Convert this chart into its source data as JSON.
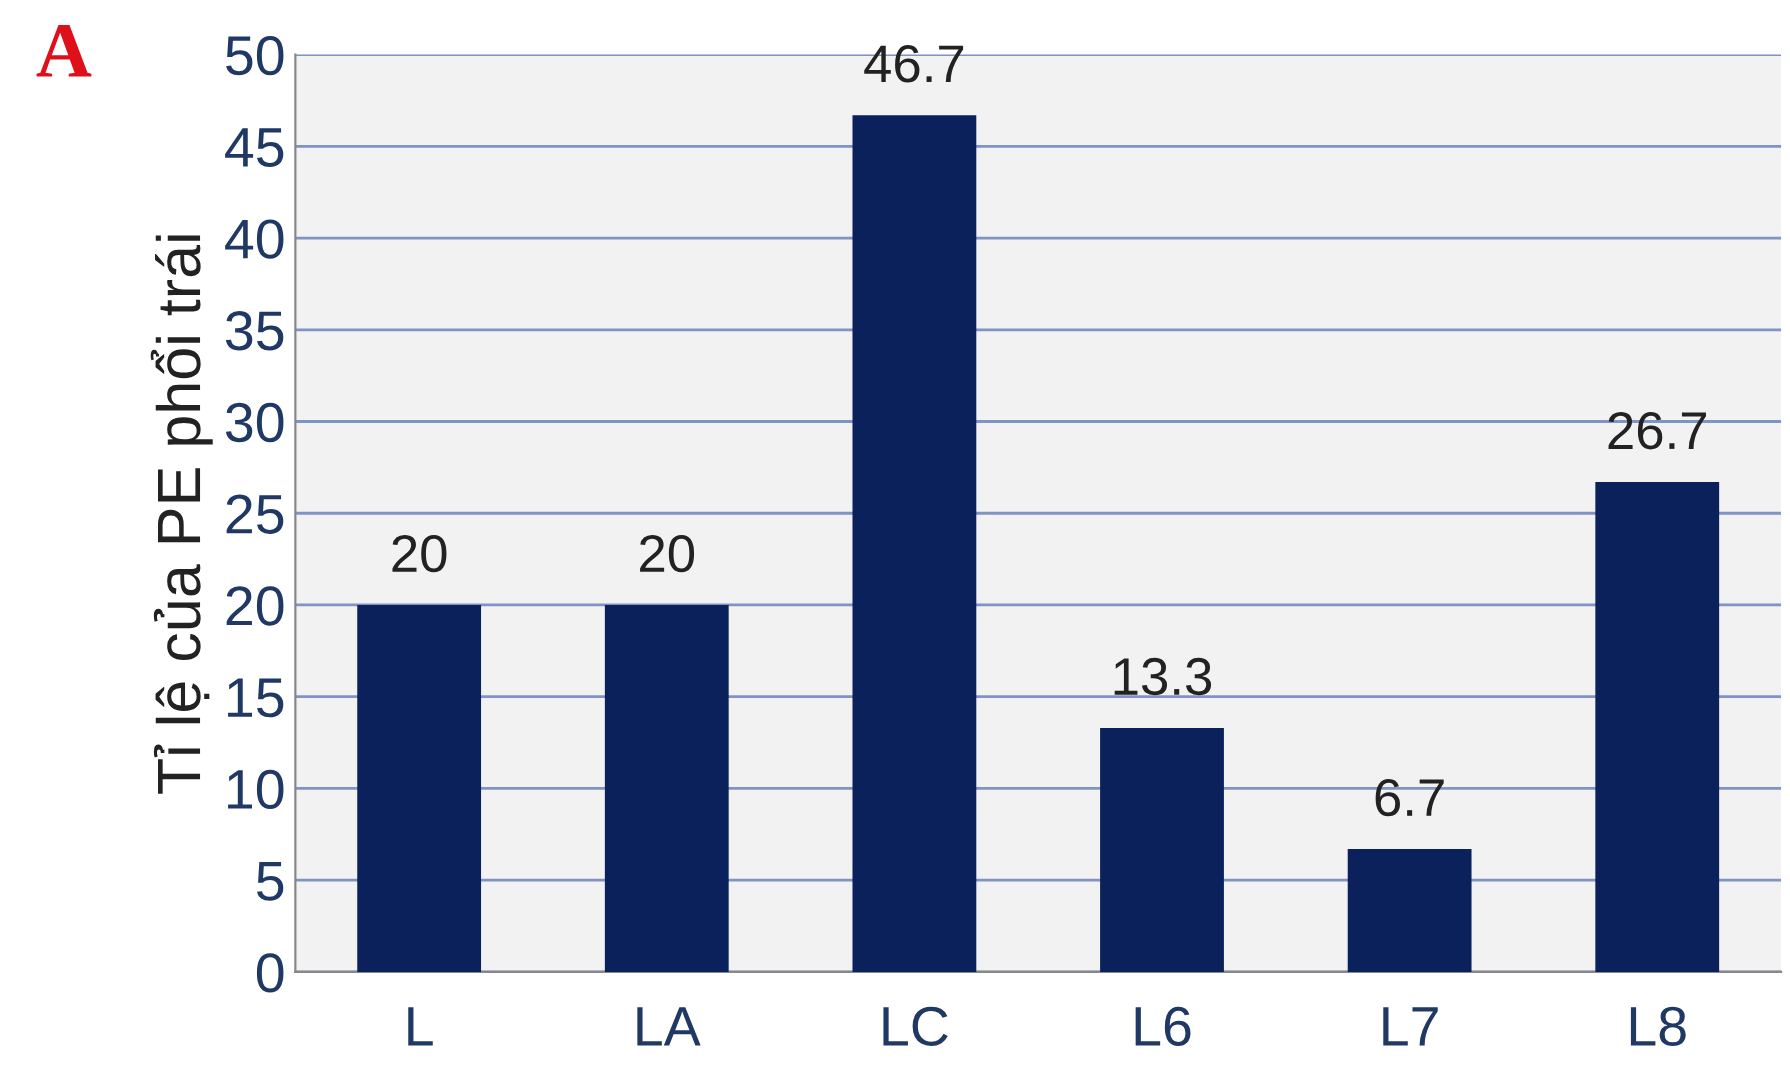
{
  "chart_data": {
    "type": "bar",
    "ylabel": "Tỉ lệ của PE phổi trái",
    "annotations": [
      "A"
    ],
    "categories": [
      "L",
      "LA",
      "LC",
      "L6",
      "L7",
      "L8"
    ],
    "values": [
      20,
      20,
      46.7,
      13.3,
      6.7,
      26.7
    ],
    "color": "#0a215c",
    "ylim": [
      0,
      50
    ],
    "yticks": [
      0,
      5,
      10,
      15,
      20,
      25,
      30,
      35,
      40,
      45,
      50
    ],
    "grid": "y",
    "data_labels": true
  }
}
